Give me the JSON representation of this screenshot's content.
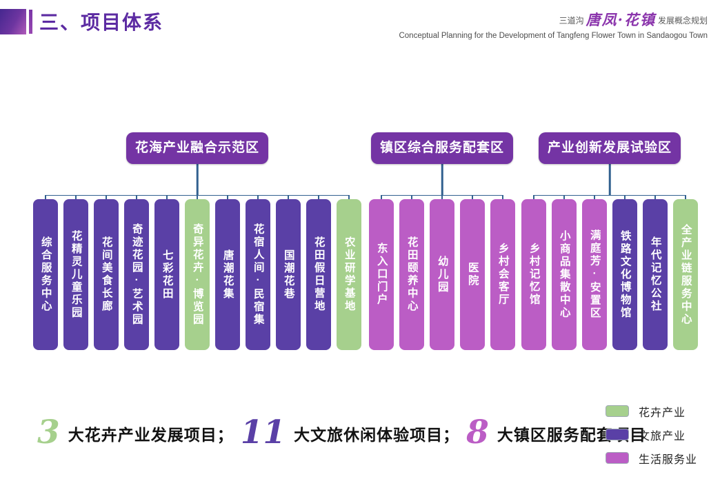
{
  "header": {
    "title": "三、项目体系",
    "brand": {
      "prefix": "三道沟",
      "logo": "唐凤·花镇",
      "suffix": "发展概念规划",
      "english": "Conceptual Planning for the Development of Tangfeng Flower Town in Sandaogou Town"
    }
  },
  "colors": {
    "flower": "#a6d08d",
    "culture": "#5a40a6",
    "service": "#bb5dc5",
    "zone_box": "#7434a4",
    "connector": "#31608f",
    "title": "#5c2ba2"
  },
  "groups": [
    {
      "header": "花海产业融合示范区",
      "items": [
        {
          "label": "综合服务中心",
          "type": "culture"
        },
        {
          "label": "花精灵儿童乐园",
          "type": "culture"
        },
        {
          "label": "花间美食长廊",
          "type": "culture"
        },
        {
          "label": "奇迹花园·艺术园",
          "type": "culture"
        },
        {
          "label": "七彩花田",
          "type": "culture"
        },
        {
          "label": "奇异花卉·博览园",
          "type": "flower"
        },
        {
          "label": "唐潮花集",
          "type": "culture"
        },
        {
          "label": "花宿人间·民宿集",
          "type": "culture"
        },
        {
          "label": "国潮花巷",
          "type": "culture"
        },
        {
          "label": "花田假日营地",
          "type": "culture"
        },
        {
          "label": "农业研学基地",
          "type": "flower"
        }
      ]
    },
    {
      "header": "镇区综合服务配套区",
      "items": [
        {
          "label": "东入口门户",
          "type": "service"
        },
        {
          "label": "花田颐养中心",
          "type": "service"
        },
        {
          "label": "幼儿园",
          "type": "service"
        },
        {
          "label": "医院",
          "type": "service"
        },
        {
          "label": "乡村会客厅",
          "type": "service"
        }
      ]
    },
    {
      "header": "产业创新发展试验区",
      "items": [
        {
          "label": "乡村记忆馆",
          "type": "service"
        },
        {
          "label": "小商品集散中心",
          "type": "service"
        },
        {
          "label": "满庭芳·安置区",
          "type": "service"
        },
        {
          "label": "铁路文化博物馆",
          "type": "culture"
        },
        {
          "label": "年代记忆公社",
          "type": "culture"
        },
        {
          "label": "全产业链服务中心",
          "type": "flower"
        }
      ]
    }
  ],
  "legend": [
    {
      "label": "花卉产业",
      "type": "flower"
    },
    {
      "label": "文旅产业",
      "type": "culture"
    },
    {
      "label": "生活服务业",
      "type": "service"
    }
  ],
  "summary": [
    {
      "number": "3",
      "text": "大花卉产业发展项目；",
      "type": "flower"
    },
    {
      "number": "11",
      "text": "大文旅休闲体验项目；",
      "type": "culture"
    },
    {
      "number": "8",
      "text": "大镇区服务配套项目",
      "type": "service"
    }
  ]
}
